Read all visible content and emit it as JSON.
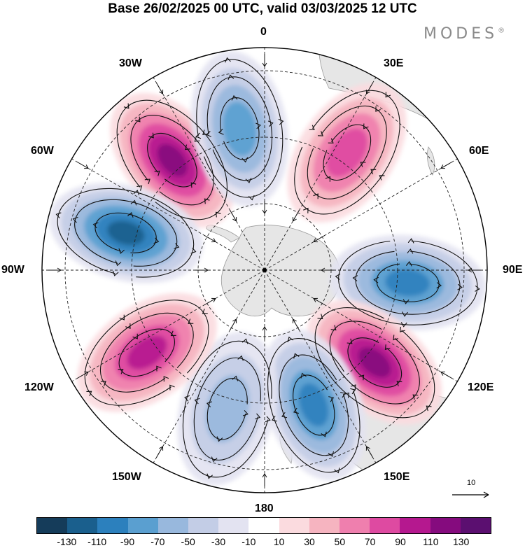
{
  "header": {
    "title": "Base 26/02/2025 00 UTC, valid 03/03/2025 12 UTC",
    "brand": "MODES",
    "brand_mark": "®"
  },
  "map": {
    "projection": "polar-stereographic-south",
    "longitude_labels": {
      "lon_0": "0",
      "lon_30e": "30E",
      "lon_60e": "60E",
      "lon_90e": "90E",
      "lon_120e": "120E",
      "lon_150e": "150E",
      "lon_180": "180",
      "lon_150w": "150W",
      "lon_120w": "120W",
      "lon_90w": "90W",
      "lon_60w": "60W",
      "lon_30w": "30W"
    },
    "reference_vector_label": "10",
    "land_color": "#e6e6e6",
    "anomaly_centers": [
      {
        "lon_label": "40W",
        "sign": "positive",
        "peak": 130
      },
      {
        "lon_label": "10W",
        "sign": "negative",
        "peak": -90
      },
      {
        "lon_label": "35E",
        "sign": "positive",
        "peak": 90
      },
      {
        "lon_label": "95E",
        "sign": "negative",
        "peak": -110
      },
      {
        "lon_label": "130E",
        "sign": "positive",
        "peak": 130
      },
      {
        "lon_label": "160E",
        "sign": "negative",
        "peak": -110
      },
      {
        "lon_label": "165W",
        "sign": "negative",
        "peak": -70
      },
      {
        "lon_label": "125W",
        "sign": "positive",
        "peak": 110
      },
      {
        "lon_label": "75W",
        "sign": "negative",
        "peak": -130
      }
    ]
  },
  "colorbar": {
    "labels": [
      "-130",
      "-110",
      "-90",
      "-70",
      "-50",
      "-30",
      "-10",
      "10",
      "30",
      "50",
      "70",
      "90",
      "110",
      "130"
    ],
    "colors": [
      "#153c5a",
      "#1a5f8d",
      "#2c80bd",
      "#5a9fd0",
      "#98b8dd",
      "#c3cde6",
      "#e3e3f1",
      "#ffffff",
      "#fbdbdf",
      "#f6b4c0",
      "#ef7fae",
      "#de4aa1",
      "#b5188f",
      "#850b7e",
      "#5b0f70"
    ]
  }
}
